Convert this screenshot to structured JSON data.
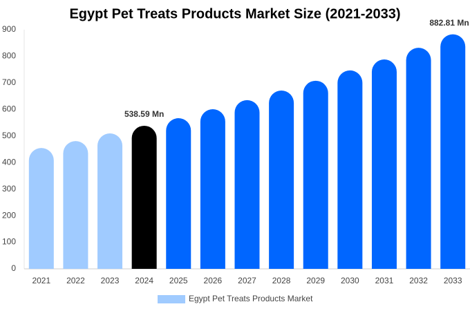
{
  "chart_data": {
    "type": "bar",
    "title": "Egypt Pet Treats Products Market Size (2021-2033)",
    "categories": [
      "2021",
      "2022",
      "2023",
      "2024",
      "2025",
      "2026",
      "2027",
      "2028",
      "2029",
      "2030",
      "2031",
      "2032",
      "2033"
    ],
    "series": [
      {
        "name": "Egypt Pet Treats Products Market",
        "color": "#a0cbff",
        "colors": [
          "#a0cbff",
          "#a0cbff",
          "#a0cbff",
          "#000000",
          "#0066ff",
          "#0066ff",
          "#0066ff",
          "#0066ff",
          "#0066ff",
          "#0066ff",
          "#0066ff",
          "#0066ff",
          "#0066ff"
        ],
        "values": [
          455,
          481,
          510,
          538.59,
          567,
          601,
          635,
          671,
          708,
          747,
          788,
          832,
          882.81
        ],
        "value_labels": [
          null,
          null,
          null,
          "538.59 Mn",
          null,
          null,
          null,
          null,
          null,
          null,
          null,
          null,
          "882.81 Mn"
        ]
      }
    ],
    "ylim": [
      0,
      900
    ],
    "yticks": [
      0,
      100,
      200,
      300,
      400,
      500,
      600,
      700,
      800,
      900
    ],
    "grid": false,
    "legend": "bottom"
  }
}
